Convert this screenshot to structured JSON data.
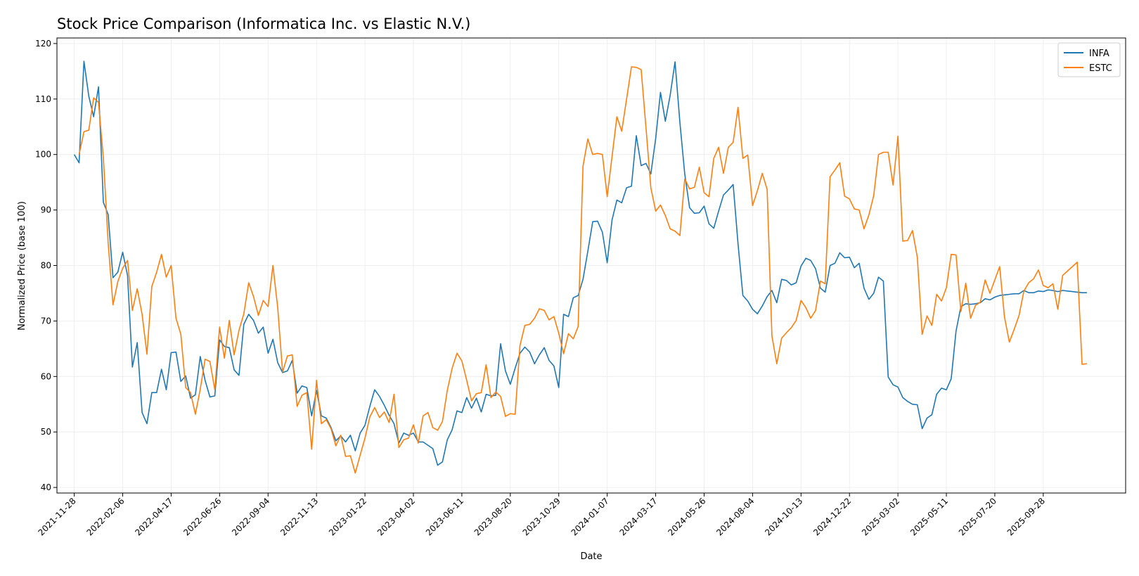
{
  "chart_data": {
    "type": "line",
    "title": "Stock Price Comparison (Informatica Inc. vs Elastic N.V.)",
    "xlabel": "Date",
    "ylabel": "Normalized Price (base 100)",
    "ylim": [
      39,
      121
    ],
    "yticks": [
      40,
      50,
      60,
      70,
      80,
      90,
      100,
      110,
      120
    ],
    "xlim": [
      "2021-11-03",
      "2026-01-25"
    ],
    "xticks": [
      "2021-11-28",
      "2022-02-06",
      "2022-04-17",
      "2022-06-26",
      "2022-09-04",
      "2022-11-13",
      "2023-01-22",
      "2023-04-02",
      "2023-06-11",
      "2023-08-20",
      "2023-10-29",
      "2024-01-07",
      "2024-03-17",
      "2024-05-26",
      "2024-08-04",
      "2024-10-13",
      "2024-12-22",
      "2025-03-02",
      "2025-05-11",
      "2025-07-20",
      "2025-09-28"
    ],
    "x_start": "2021-11-28",
    "x_step_days": 7,
    "grid": true,
    "legend_position": "top-right",
    "series": [
      {
        "name": "INFA",
        "color": "#1f77b4",
        "values": [
          100,
          98.5,
          116.8,
          110.5,
          106.8,
          112.2,
          91.4,
          89.2,
          77.8,
          78.8,
          82.4,
          78.2,
          61.7,
          66.1,
          53.5,
          51.5,
          57.1,
          57.1,
          61.3,
          57.6,
          64.3,
          64.4,
          59.1,
          60.1,
          56.1,
          56.7,
          63.6,
          59.3,
          56.3,
          56.5,
          66.6,
          65.4,
          65.2,
          61.2,
          60.2,
          69.4,
          71.2,
          70.1,
          67.8,
          68.9,
          64.2,
          66.7,
          62.5,
          60.7,
          61.0,
          62.9,
          57.0,
          58.3,
          58.0,
          52.9,
          57.5,
          52.9,
          52.5,
          50.8,
          48.4,
          49.3,
          48.2,
          49.4,
          46.6,
          49.8,
          51.2,
          54.6,
          57.6,
          56.4,
          54.8,
          53.0,
          51.5,
          48.0,
          49.8,
          49.4,
          49.8,
          48.2,
          48.2,
          47.6,
          47.0,
          44.0,
          44.6,
          48.6,
          50.4,
          53.8,
          53.5,
          56.2,
          54.3,
          56.1,
          53.6,
          56.8,
          56.5,
          56.6,
          65.9,
          61.0,
          58.6,
          61.5,
          64.2,
          65.3,
          64.4,
          62.3,
          63.9,
          65.2,
          62.9,
          61.9,
          58.0,
          71.2,
          70.8,
          74.2,
          74.6,
          77.5,
          82.6,
          87.9,
          88.0,
          86.0,
          80.5,
          88.2,
          91.8,
          91.3,
          94.0,
          94.3,
          103.4,
          98.0,
          98.4,
          96.5,
          102.9,
          111.2,
          106.0,
          110.7,
          116.7,
          105.8,
          96.5,
          90.4,
          89.4,
          89.5,
          90.7,
          87.5,
          86.7,
          89.8,
          92.7,
          93.6,
          94.6,
          83.9,
          74.6,
          73.6,
          72.1,
          71.3,
          72.7,
          74.4,
          75.5,
          73.3,
          77.5,
          77.3,
          76.5,
          76.9,
          79.9,
          81.3,
          80.9,
          79.4,
          75.9,
          75.2,
          80.0,
          80.4,
          82.3,
          81.4,
          81.5,
          79.6,
          80.4,
          75.9,
          73.9,
          75.0,
          77.9,
          77.2,
          59.9,
          58.5,
          58.1,
          56.2,
          55.5,
          55.0,
          54.9,
          50.6,
          52.5,
          53.1,
          56.8,
          57.9,
          57.6,
          59.6,
          68.2,
          72.6,
          73.1,
          73.0,
          73.1,
          73.3,
          74.0,
          73.8,
          74.3,
          74.6,
          74.7,
          74.8,
          74.9,
          74.9,
          75.5,
          75.1,
          75.1,
          75.4,
          75.3,
          75.6,
          75.5,
          75.3,
          75.5,
          75.4,
          75.3,
          75.2,
          75.1,
          75.1
        ],
        "offset": 0
      },
      {
        "name": "ESTC",
        "color": "#ff7f0e",
        "values": [
          100.0,
          104.1,
          104.4,
          110.2,
          109.4,
          99.4,
          84.2,
          72.9,
          77.1,
          79.5,
          80.9,
          71.9,
          75.8,
          71.2,
          64.0,
          76.2,
          78.8,
          82.0,
          77.9,
          80.0,
          70.5,
          67.6,
          58.0,
          57.1,
          53.2,
          57.7,
          63.1,
          62.7,
          57.6,
          68.9,
          63.3,
          70.1,
          63.9,
          68.3,
          71.3,
          76.9,
          74.4,
          71.0,
          73.7,
          72.6,
          80.0,
          72.4,
          60.8,
          63.7,
          63.9,
          54.6,
          56.6,
          57.1,
          46.9,
          59.3,
          51.5,
          52.2,
          50.6,
          47.5,
          49.4,
          45.6,
          45.7,
          42.6,
          45.8,
          48.9,
          52.7,
          54.4,
          52.6,
          53.6,
          51.7,
          56.8,
          47.2,
          48.6,
          48.9,
          51.3,
          48.0,
          52.9,
          53.5,
          50.8,
          50.3,
          51.9,
          57.5,
          61.5,
          64.2,
          62.8,
          59.3,
          55.6,
          56.9,
          57.1,
          62.1,
          56.2,
          57.2,
          56.4,
          52.8,
          53.3,
          53.2,
          65.6,
          69.2,
          69.4,
          70.5,
          72.2,
          71.9,
          70.2,
          70.8,
          67.8,
          64.1,
          67.7,
          66.8,
          69.0,
          97.9,
          102.8,
          100.0,
          100.2,
          100.0,
          92.4,
          99.6,
          106.8,
          104.2,
          110.0,
          115.8,
          115.7,
          115.3,
          104.8,
          94.0,
          89.8,
          90.9,
          89.0,
          86.6,
          86.2,
          85.4,
          95.6,
          93.8,
          94.1,
          97.7,
          93.1,
          92.4,
          99.3,
          101.3,
          96.6,
          101.3,
          102.2,
          108.5,
          99.3,
          99.9,
          90.8,
          93.5,
          96.6,
          93.7,
          67.3,
          62.3,
          66.9,
          67.9,
          68.8,
          70.1,
          73.7,
          72.4,
          70.5,
          71.9,
          77.2,
          76.7,
          96.0,
          97.2,
          98.5,
          92.5,
          92.0,
          90.2,
          90.0,
          86.6,
          89.1,
          92.6,
          100.0,
          100.4,
          100.4,
          94.5,
          103.3,
          84.4,
          84.5,
          86.3,
          81.5,
          67.6,
          70.9,
          69.2,
          74.8,
          73.6,
          76.0,
          82.0,
          81.9,
          71.7,
          76.8,
          70.5,
          72.8,
          73.4,
          77.4,
          75.0,
          77.4,
          79.8,
          70.7,
          66.2,
          68.5,
          71.0,
          75.4,
          76.9,
          77.6,
          79.2,
          76.4,
          76.0,
          76.7,
          72.1,
          78.2,
          79.0,
          79.8,
          80.6,
          62.2,
          62.3
        ],
        "offset": 1
      }
    ]
  }
}
